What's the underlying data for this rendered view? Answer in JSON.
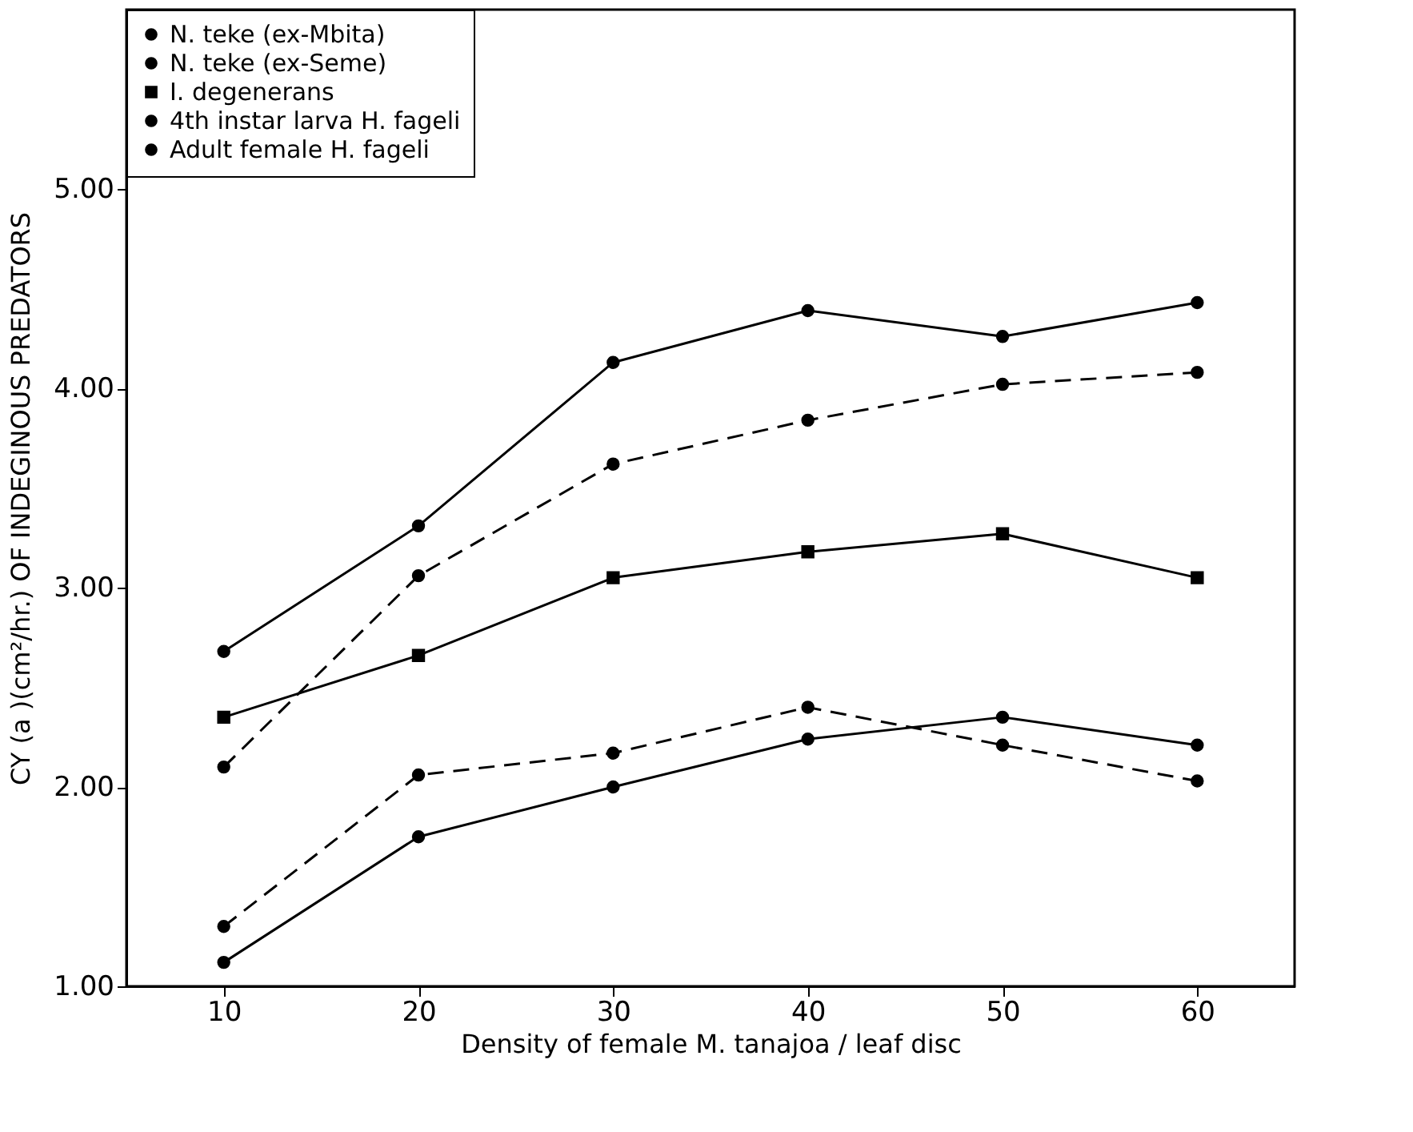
{
  "chart_data": {
    "type": "line",
    "xlabel": "Density of female M. tanajoa / leaf disc",
    "ylabel": "CY (a )(cm²/hr.) OF INDEGINOUS PREDATORS",
    "x": [
      10,
      20,
      30,
      40,
      50,
      60
    ],
    "xlim": [
      5,
      65
    ],
    "xticks": [
      10,
      20,
      30,
      40,
      50,
      60
    ],
    "ylim": [
      1.0,
      5.9
    ],
    "yticks": [
      {
        "value": 1,
        "label": "1.00"
      },
      {
        "value": 2,
        "label": "2.00"
      },
      {
        "value": 3,
        "label": "3.00"
      },
      {
        "value": 4,
        "label": "4.00"
      },
      {
        "value": 5,
        "label": "5.00"
      }
    ],
    "grid": false,
    "legend": "top left",
    "series": [
      {
        "name": "N. teke (ex-Mbita)",
        "color": "#000000",
        "marker": "circle",
        "line_style": "solid",
        "values": [
          1.12,
          1.75,
          2.0,
          2.24,
          2.35,
          2.21
        ]
      },
      {
        "name": "N. teke (ex-Seme)",
        "color": "#000000",
        "marker": "circle",
        "line_style": "dashed",
        "values": [
          1.3,
          2.06,
          2.17,
          2.4,
          2.21,
          2.03
        ]
      },
      {
        "name": "I. degenerans",
        "color": "#000000",
        "marker": "square",
        "line_style": "solid",
        "values": [
          2.35,
          2.66,
          3.05,
          3.18,
          3.27,
          3.05
        ]
      },
      {
        "name": "4th instar larva H. fageli",
        "color": "#000000",
        "marker": "circle",
        "line_style": "dashed",
        "values": [
          2.1,
          3.06,
          3.62,
          3.84,
          4.02,
          4.08
        ]
      },
      {
        "name": "Adult female H. fageli",
        "color": "#000000",
        "marker": "circle",
        "line_style": "solid",
        "values": [
          2.68,
          3.31,
          4.13,
          4.39,
          4.26,
          4.43
        ]
      }
    ]
  }
}
